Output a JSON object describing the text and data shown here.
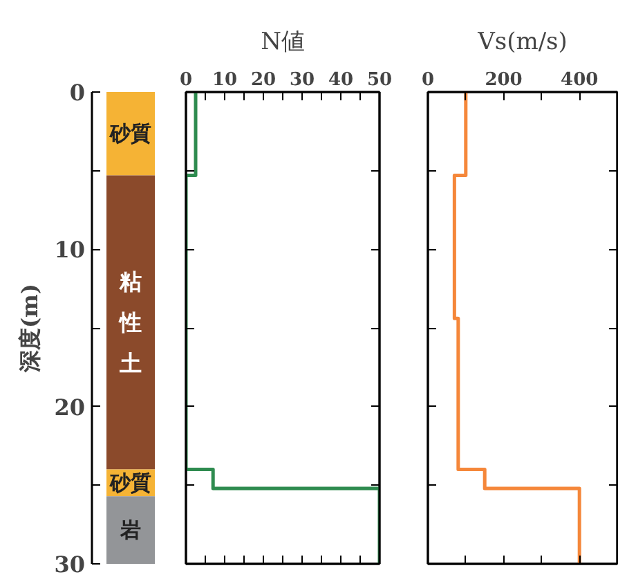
{
  "chart_data": [
    {
      "type": "bar",
      "stacked": true,
      "categories": [
        null
      ],
      "ylabel": "深度(m)",
      "ylim": [
        30,
        0
      ],
      "yticks": [
        0,
        {
          "value": 5,
          "label": null
        },
        10,
        {
          "value": 15,
          "label": null
        },
        20,
        {
          "value": 25,
          "label": null
        },
        30
      ],
      "tick_labels": "y",
      "grid": false,
      "legend": false,
      "series": [
        {
          "name": "砂質",
          "color": "#f5b335",
          "values": [
            5.3
          ]
        },
        {
          "name": "粘性土",
          "color": "#8b4a2b",
          "values": [
            18.7
          ]
        },
        {
          "name": "砂質",
          "color": "#f5b335",
          "values": [
            1.7
          ]
        },
        {
          "name": "岩",
          "color": "#939598",
          "values": [
            4.3
          ]
        }
      ]
    },
    {
      "type": "line",
      "xlabel": "N値",
      "xlim": [
        0,
        50
      ],
      "xticks": [
        0,
        {
          "value": 5,
          "label": null
        },
        10,
        {
          "value": 15,
          "label": null
        },
        20,
        {
          "value": 25,
          "label": null
        },
        30,
        {
          "value": 35,
          "label": null
        },
        40,
        {
          "value": 45,
          "label": null
        },
        50
      ],
      "ylim": [
        30,
        0
      ],
      "yticks": [
        {
          "value": 0,
          "label": null
        },
        {
          "value": 5,
          "label": null
        },
        {
          "value": 10,
          "label": null
        },
        {
          "value": 15,
          "label": null
        },
        {
          "value": 20,
          "label": null
        },
        {
          "value": 25,
          "label": null
        },
        {
          "value": 30,
          "label": null
        }
      ],
      "tick_labels": "x",
      "grid": false,
      "legend": false,
      "series": [
        {
          "color": "#2e8b4f",
          "x": [
            2.5,
            2.5,
            0,
            0,
            7,
            7,
            50,
            50
          ],
          "values": [
            0,
            5.3,
            5.3,
            24,
            24,
            25.2,
            25.2,
            30
          ]
        }
      ]
    },
    {
      "type": "line",
      "xlabel": "Vs(m/s)",
      "xlim": [
        0,
        500
      ],
      "xticks": [
        0,
        {
          "value": 100,
          "label": null
        },
        200,
        {
          "value": 300,
          "label": null
        },
        400
      ],
      "ylim": [
        30,
        0
      ],
      "yticks": [
        {
          "value": 0,
          "label": null
        },
        {
          "value": 5,
          "label": null
        },
        {
          "value": 10,
          "label": null
        },
        {
          "value": 15,
          "label": null
        },
        {
          "value": 20,
          "label": null
        },
        {
          "value": 25,
          "label": null
        },
        {
          "value": 30,
          "label": null
        }
      ],
      "tick_labels": "x",
      "grid": false,
      "legend": false,
      "series": [
        {
          "color": "#f5873a",
          "x": [
            100,
            100,
            70,
            70,
            80,
            80,
            150,
            150,
            400,
            400
          ],
          "values": [
            0,
            5.3,
            5.3,
            14.4,
            14.4,
            24,
            24,
            25.2,
            25.2,
            30
          ]
        }
      ]
    }
  ]
}
